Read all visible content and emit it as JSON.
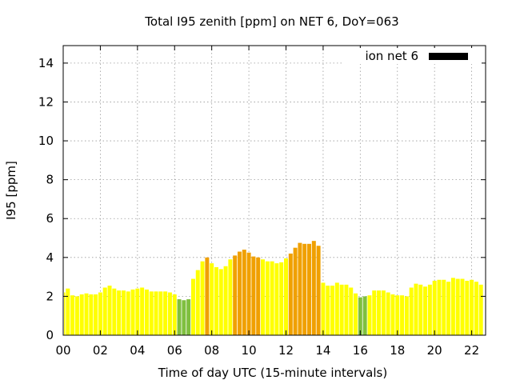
{
  "chart_data": {
    "type": "bar",
    "title": "Total I95 zenith [ppm] on NET 6, DoY=063",
    "xlabel": "Time of day UTC (15-minute intervals)",
    "ylabel": "I95 [ppm]",
    "x_ticks": [
      "00",
      "02",
      "04",
      "06",
      "08",
      "10",
      "12",
      "14",
      "16",
      "18",
      "20",
      "22"
    ],
    "y_ticks": [
      "0",
      "2",
      "4",
      "6",
      "8",
      "10",
      "12",
      "14"
    ],
    "xlim": [
      0,
      22.75
    ],
    "ylim": [
      0,
      14.9
    ],
    "grid": true,
    "legend_position": "top-right",
    "series": [
      {
        "name": "ion net 6",
        "legend_color": "#000000",
        "x": [
          0.0,
          0.25,
          0.5,
          0.75,
          1.0,
          1.25,
          1.5,
          1.75,
          2.0,
          2.25,
          2.5,
          2.75,
          3.0,
          3.25,
          3.5,
          3.75,
          4.0,
          4.25,
          4.5,
          4.75,
          5.0,
          5.25,
          5.5,
          5.75,
          6.0,
          6.25,
          6.5,
          6.75,
          7.0,
          7.25,
          7.5,
          7.75,
          8.0,
          8.25,
          8.5,
          8.75,
          9.0,
          9.25,
          9.5,
          9.75,
          10.0,
          10.25,
          10.5,
          10.75,
          11.0,
          11.25,
          11.5,
          11.75,
          12.0,
          12.25,
          12.5,
          12.75,
          13.0,
          13.25,
          13.5,
          13.75,
          14.0,
          14.25,
          14.5,
          14.75,
          15.0,
          15.25,
          15.5,
          15.75,
          16.0,
          16.25,
          16.5,
          16.75,
          17.0,
          17.25,
          17.5,
          17.75,
          18.0,
          18.25,
          18.5,
          18.75,
          19.0,
          19.25,
          19.5,
          19.75,
          20.0,
          20.25,
          20.5,
          20.75,
          21.0,
          21.25,
          21.5,
          21.75,
          22.0,
          22.25,
          22.5
        ],
        "values": [
          2.2,
          2.4,
          2.05,
          2.0,
          2.1,
          2.15,
          2.1,
          2.1,
          2.2,
          2.45,
          2.55,
          2.4,
          2.3,
          2.3,
          2.25,
          2.35,
          2.4,
          2.45,
          2.35,
          2.25,
          2.25,
          2.25,
          2.25,
          2.2,
          2.1,
          1.85,
          1.8,
          1.85,
          2.9,
          3.35,
          3.8,
          4.0,
          3.7,
          3.5,
          3.4,
          3.55,
          3.9,
          4.1,
          4.3,
          4.4,
          4.25,
          4.05,
          4.0,
          3.9,
          3.8,
          3.8,
          3.7,
          3.75,
          3.95,
          4.2,
          4.5,
          4.75,
          4.7,
          4.7,
          4.85,
          4.6,
          2.7,
          2.55,
          2.55,
          2.7,
          2.6,
          2.6,
          2.45,
          2.15,
          1.95,
          2.0,
          2.05,
          2.3,
          2.3,
          2.3,
          2.2,
          2.1,
          2.05,
          2.05,
          2.0,
          2.45,
          2.65,
          2.6,
          2.5,
          2.6,
          2.8,
          2.85,
          2.85,
          2.75,
          2.95,
          2.9,
          2.9,
          2.8,
          2.85,
          2.75,
          2.6
        ],
        "colors": [
          "#ffff00",
          "#ffff00",
          "#ffff00",
          "#ffff00",
          "#ffff00",
          "#ffff00",
          "#ffff00",
          "#ffff00",
          "#ffff00",
          "#ffff00",
          "#ffff00",
          "#ffff00",
          "#ffff00",
          "#ffff00",
          "#ffff00",
          "#ffff00",
          "#ffff00",
          "#ffff00",
          "#ffff00",
          "#ffff00",
          "#ffff00",
          "#ffff00",
          "#ffff00",
          "#ffff00",
          "#ffff00",
          "#7fbf3f",
          "#7fbf3f",
          "#7fbf3f",
          "#ffff00",
          "#ffff00",
          "#ffff00",
          "#f0a000",
          "#ffff00",
          "#ffff00",
          "#ffff00",
          "#ffff00",
          "#ffff00",
          "#f0a000",
          "#f0a000",
          "#f0a000",
          "#f0a000",
          "#f0a000",
          "#f0a000",
          "#ffff00",
          "#ffff00",
          "#ffff00",
          "#ffff00",
          "#ffff00",
          "#ffff00",
          "#f0a000",
          "#f0a000",
          "#f0a000",
          "#f0a000",
          "#f0a000",
          "#f0a000",
          "#f0a000",
          "#ffff00",
          "#ffff00",
          "#ffff00",
          "#ffff00",
          "#ffff00",
          "#ffff00",
          "#ffff00",
          "#ffff00",
          "#7fbf3f",
          "#7fbf3f",
          "#ffff00",
          "#ffff00",
          "#ffff00",
          "#ffff00",
          "#ffff00",
          "#ffff00",
          "#ffff00",
          "#ffff00",
          "#ffff00",
          "#ffff00",
          "#ffff00",
          "#ffff00",
          "#ffff00",
          "#ffff00",
          "#ffff00",
          "#ffff00",
          "#ffff00",
          "#ffff00",
          "#ffff00",
          "#ffff00",
          "#ffff00",
          "#ffff00",
          "#ffff00",
          "#ffff00",
          "#ffff00"
        ]
      }
    ]
  }
}
